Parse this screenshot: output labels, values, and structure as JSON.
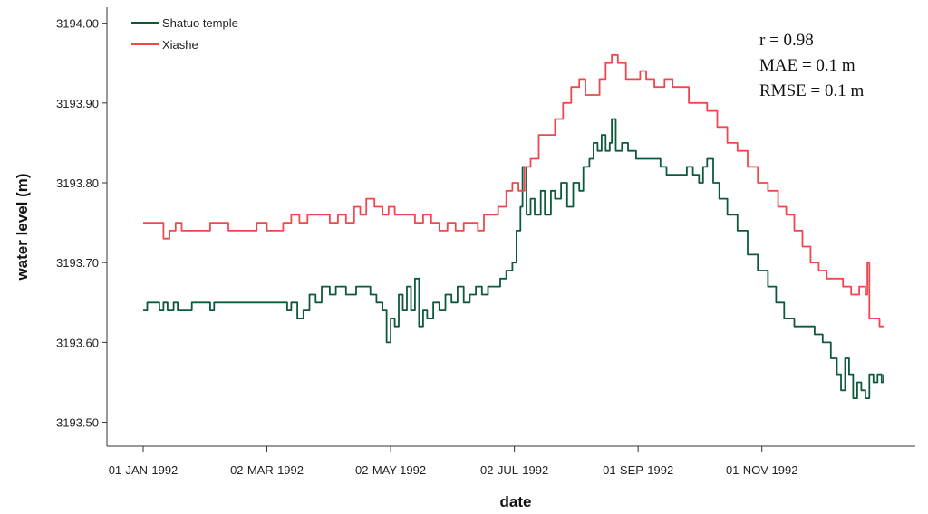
{
  "chart_data": {
    "type": "line",
    "title": "",
    "xlabel": "date",
    "ylabel": "water level (m)",
    "ylim": [
      3193.47,
      3194.02
    ],
    "yticks": [
      "3193.50",
      "3193.60",
      "3193.70",
      "3193.80",
      "3193.90",
      "3194.00"
    ],
    "xlim": [
      "1992-01-01",
      "1992-12-31"
    ],
    "xticks": [
      {
        "date": "1992-01-01",
        "label": "01-JAN-1992"
      },
      {
        "date": "1992-03-02",
        "label": "02-MAR-1992"
      },
      {
        "date": "1992-05-02",
        "label": "02-MAY-1992"
      },
      {
        "date": "1992-07-02",
        "label": "02-JUL-1992"
      },
      {
        "date": "1992-09-01",
        "label": "01-SEP-1992"
      },
      {
        "date": "1992-11-01",
        "label": "01-NOV-1992"
      }
    ],
    "legend_position": "top-left",
    "stats": [
      "r = 0.98",
      "MAE = 0.1 m",
      "RMSE = 0.1 m"
    ],
    "series": [
      {
        "name": "Shatuo temple",
        "color": "#0d5a3a",
        "points": [
          [
            "1992-01-01",
            3193.64
          ],
          [
            "1992-01-03",
            3193.65
          ],
          [
            "1992-01-08",
            3193.65
          ],
          [
            "1992-01-09",
            3193.64
          ],
          [
            "1992-01-11",
            3193.65
          ],
          [
            "1992-01-13",
            3193.64
          ],
          [
            "1992-01-16",
            3193.65
          ],
          [
            "1992-01-18",
            3193.64
          ],
          [
            "1992-01-23",
            3193.64
          ],
          [
            "1992-01-25",
            3193.65
          ],
          [
            "1992-02-01",
            3193.65
          ],
          [
            "1992-02-03",
            3193.64
          ],
          [
            "1992-02-05",
            3193.65
          ],
          [
            "1992-03-05",
            3193.65
          ],
          [
            "1992-03-10",
            3193.65
          ],
          [
            "1992-03-12",
            3193.64
          ],
          [
            "1992-03-14",
            3193.65
          ],
          [
            "1992-03-17",
            3193.63
          ],
          [
            "1992-03-20",
            3193.64
          ],
          [
            "1992-03-23",
            3193.66
          ],
          [
            "1992-03-26",
            3193.65
          ],
          [
            "1992-03-29",
            3193.67
          ],
          [
            "1992-04-02",
            3193.66
          ],
          [
            "1992-04-05",
            3193.67
          ],
          [
            "1992-04-10",
            3193.66
          ],
          [
            "1992-04-15",
            3193.67
          ],
          [
            "1992-04-22",
            3193.66
          ],
          [
            "1992-04-25",
            3193.65
          ],
          [
            "1992-04-28",
            3193.64
          ],
          [
            "1992-04-30",
            3193.6
          ],
          [
            "1992-05-02",
            3193.63
          ],
          [
            "1992-05-04",
            3193.62
          ],
          [
            "1992-05-06",
            3193.66
          ],
          [
            "1992-05-08",
            3193.64
          ],
          [
            "1992-05-10",
            3193.67
          ],
          [
            "1992-05-12",
            3193.64
          ],
          [
            "1992-05-14",
            3193.68
          ],
          [
            "1992-05-16",
            3193.62
          ],
          [
            "1992-05-18",
            3193.64
          ],
          [
            "1992-05-20",
            3193.63
          ],
          [
            "1992-05-23",
            3193.65
          ],
          [
            "1992-05-26",
            3193.64
          ],
          [
            "1992-05-29",
            3193.66
          ],
          [
            "1992-06-01",
            3193.65
          ],
          [
            "1992-06-04",
            3193.67
          ],
          [
            "1992-06-07",
            3193.65
          ],
          [
            "1992-06-10",
            3193.66
          ],
          [
            "1992-06-13",
            3193.67
          ],
          [
            "1992-06-16",
            3193.66
          ],
          [
            "1992-06-19",
            3193.67
          ],
          [
            "1992-06-22",
            3193.67
          ],
          [
            "1992-06-25",
            3193.68
          ],
          [
            "1992-06-28",
            3193.69
          ],
          [
            "1992-07-01",
            3193.7
          ],
          [
            "1992-07-03",
            3193.74
          ],
          [
            "1992-07-05",
            3193.77
          ],
          [
            "1992-07-06",
            3193.82
          ],
          [
            "1992-07-08",
            3193.76
          ],
          [
            "1992-07-10",
            3193.78
          ],
          [
            "1992-07-12",
            3193.76
          ],
          [
            "1992-07-15",
            3193.79
          ],
          [
            "1992-07-17",
            3193.76
          ],
          [
            "1992-07-20",
            3193.79
          ],
          [
            "1992-07-22",
            3193.78
          ],
          [
            "1992-07-25",
            3193.8
          ],
          [
            "1992-07-28",
            3193.77
          ],
          [
            "1992-07-31",
            3193.8
          ],
          [
            "1992-08-03",
            3193.79
          ],
          [
            "1992-08-05",
            3193.82
          ],
          [
            "1992-08-08",
            3193.83
          ],
          [
            "1992-08-10",
            3193.85
          ],
          [
            "1992-08-12",
            3193.84
          ],
          [
            "1992-08-14",
            3193.86
          ],
          [
            "1992-08-16",
            3193.84
          ],
          [
            "1992-08-18",
            3193.85
          ],
          [
            "1992-08-19",
            3193.88
          ],
          [
            "1992-08-21",
            3193.84
          ],
          [
            "1992-08-24",
            3193.85
          ],
          [
            "1992-08-27",
            3193.84
          ],
          [
            "1992-08-31",
            3193.83
          ],
          [
            "1992-09-08",
            3193.83
          ],
          [
            "1992-09-12",
            3193.82
          ],
          [
            "1992-09-15",
            3193.81
          ],
          [
            "1992-09-22",
            3193.81
          ],
          [
            "1992-09-25",
            3193.82
          ],
          [
            "1992-09-28",
            3193.81
          ],
          [
            "1992-10-01",
            3193.8
          ],
          [
            "1992-10-03",
            3193.82
          ],
          [
            "1992-10-05",
            3193.83
          ],
          [
            "1992-10-08",
            3193.8
          ],
          [
            "1992-10-11",
            3193.78
          ],
          [
            "1992-10-15",
            3193.76
          ],
          [
            "1992-10-20",
            3193.74
          ],
          [
            "1992-10-25",
            3193.71
          ],
          [
            "1992-10-30",
            3193.69
          ],
          [
            "1992-11-04",
            3193.67
          ],
          [
            "1992-11-08",
            3193.65
          ],
          [
            "1992-11-12",
            3193.63
          ],
          [
            "1992-11-17",
            3193.62
          ],
          [
            "1992-11-24",
            3193.62
          ],
          [
            "1992-11-27",
            3193.61
          ],
          [
            "1992-12-01",
            3193.6
          ],
          [
            "1992-12-05",
            3193.58
          ],
          [
            "1992-12-08",
            3193.56
          ],
          [
            "1992-12-10",
            3193.54
          ],
          [
            "1992-12-12",
            3193.58
          ],
          [
            "1992-12-14",
            3193.56
          ],
          [
            "1992-12-16",
            3193.53
          ],
          [
            "1992-12-18",
            3193.55
          ],
          [
            "1992-12-20",
            3193.54
          ],
          [
            "1992-12-22",
            3193.53
          ],
          [
            "1992-12-24",
            3193.56
          ],
          [
            "1992-12-26",
            3193.55
          ],
          [
            "1992-12-28",
            3193.56
          ],
          [
            "1992-12-30",
            3193.55
          ],
          [
            "1992-12-31",
            3193.56
          ]
        ]
      },
      {
        "name": "Xiashe",
        "color": "#f0474f",
        "points": [
          [
            "1992-01-01",
            3193.75
          ],
          [
            "1992-01-10",
            3193.75
          ],
          [
            "1992-01-11",
            3193.73
          ],
          [
            "1992-01-14",
            3193.74
          ],
          [
            "1992-01-17",
            3193.75
          ],
          [
            "1992-01-20",
            3193.74
          ],
          [
            "1992-02-01",
            3193.74
          ],
          [
            "1992-02-03",
            3193.75
          ],
          [
            "1992-02-10",
            3193.75
          ],
          [
            "1992-02-12",
            3193.74
          ],
          [
            "1992-02-24",
            3193.74
          ],
          [
            "1992-02-26",
            3193.75
          ],
          [
            "1992-03-02",
            3193.74
          ],
          [
            "1992-03-07",
            3193.74
          ],
          [
            "1992-03-10",
            3193.75
          ],
          [
            "1992-03-14",
            3193.76
          ],
          [
            "1992-03-18",
            3193.75
          ],
          [
            "1992-03-22",
            3193.76
          ],
          [
            "1992-03-28",
            3193.76
          ],
          [
            "1992-04-02",
            3193.75
          ],
          [
            "1992-04-06",
            3193.76
          ],
          [
            "1992-04-10",
            3193.75
          ],
          [
            "1992-04-14",
            3193.77
          ],
          [
            "1992-04-17",
            3193.76
          ],
          [
            "1992-04-20",
            3193.78
          ],
          [
            "1992-04-24",
            3193.77
          ],
          [
            "1992-04-28",
            3193.76
          ],
          [
            "1992-05-01",
            3193.77
          ],
          [
            "1992-05-04",
            3193.76
          ],
          [
            "1992-05-10",
            3193.76
          ],
          [
            "1992-05-14",
            3193.75
          ],
          [
            "1992-05-18",
            3193.76
          ],
          [
            "1992-05-22",
            3193.75
          ],
          [
            "1992-05-26",
            3193.74
          ],
          [
            "1992-05-30",
            3193.75
          ],
          [
            "1992-06-03",
            3193.74
          ],
          [
            "1992-06-07",
            3193.75
          ],
          [
            "1992-06-10",
            3193.75
          ],
          [
            "1992-06-14",
            3193.74
          ],
          [
            "1992-06-17",
            3193.76
          ],
          [
            "1992-06-20",
            3193.76
          ],
          [
            "1992-06-24",
            3193.77
          ],
          [
            "1992-06-28",
            3193.79
          ],
          [
            "1992-07-01",
            3193.8
          ],
          [
            "1992-07-04",
            3193.79
          ],
          [
            "1992-07-07",
            3193.82
          ],
          [
            "1992-07-10",
            3193.83
          ],
          [
            "1992-07-14",
            3193.86
          ],
          [
            "1992-07-18",
            3193.86
          ],
          [
            "1992-07-22",
            3193.88
          ],
          [
            "1992-07-26",
            3193.9
          ],
          [
            "1992-07-30",
            3193.92
          ],
          [
            "1992-08-03",
            3193.93
          ],
          [
            "1992-08-06",
            3193.91
          ],
          [
            "1992-08-10",
            3193.91
          ],
          [
            "1992-08-13",
            3193.93
          ],
          [
            "1992-08-16",
            3193.95
          ],
          [
            "1992-08-19",
            3193.96
          ],
          [
            "1992-08-22",
            3193.95
          ],
          [
            "1992-08-26",
            3193.93
          ],
          [
            "1992-08-29",
            3193.93
          ],
          [
            "1992-09-02",
            3193.94
          ],
          [
            "1992-09-05",
            3193.93
          ],
          [
            "1992-09-09",
            3193.92
          ],
          [
            "1992-09-14",
            3193.93
          ],
          [
            "1992-09-18",
            3193.92
          ],
          [
            "1992-09-22",
            3193.92
          ],
          [
            "1992-09-26",
            3193.9
          ],
          [
            "1992-10-01",
            3193.9
          ],
          [
            "1992-10-05",
            3193.89
          ],
          [
            "1992-10-10",
            3193.87
          ],
          [
            "1992-10-15",
            3193.85
          ],
          [
            "1992-10-20",
            3193.84
          ],
          [
            "1992-10-25",
            3193.82
          ],
          [
            "1992-10-30",
            3193.8
          ],
          [
            "1992-11-04",
            3193.79
          ],
          [
            "1992-11-09",
            3193.77
          ],
          [
            "1992-11-13",
            3193.76
          ],
          [
            "1992-11-17",
            3193.74
          ],
          [
            "1992-11-21",
            3193.72
          ],
          [
            "1992-11-25",
            3193.7
          ],
          [
            "1992-11-29",
            3193.69
          ],
          [
            "1992-12-03",
            3193.68
          ],
          [
            "1992-12-07",
            3193.68
          ],
          [
            "1992-12-11",
            3193.67
          ],
          [
            "1992-12-15",
            3193.66
          ],
          [
            "1992-12-19",
            3193.67
          ],
          [
            "1992-12-22",
            3193.66
          ],
          [
            "1992-12-23",
            3193.7
          ],
          [
            "1992-12-24",
            3193.63
          ],
          [
            "1992-12-27",
            3193.63
          ],
          [
            "1992-12-29",
            3193.62
          ],
          [
            "1992-12-31",
            3193.62
          ]
        ]
      }
    ]
  }
}
